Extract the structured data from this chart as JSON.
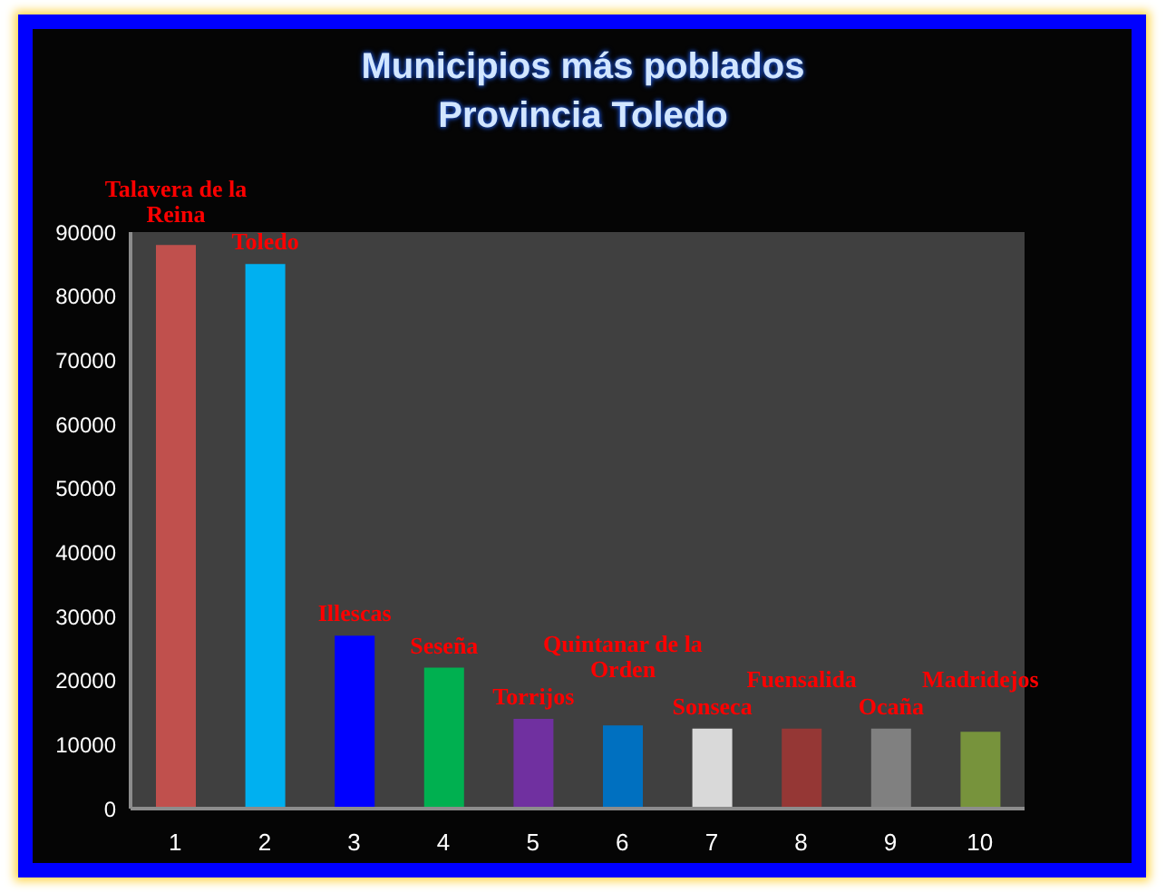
{
  "chart_data": {
    "type": "bar",
    "title": "Municipios más poblados",
    "subtitle": "Provincia Toledo",
    "categories": [
      "1",
      "2",
      "3",
      "4",
      "5",
      "6",
      "7",
      "8",
      "9",
      "10"
    ],
    "values": [
      88000,
      85000,
      27000,
      22000,
      14000,
      13000,
      12500,
      12500,
      12500,
      12000
    ],
    "colors": [
      "#c0504d",
      "#00b0f0",
      "#0000ff",
      "#00b050",
      "#7030a0",
      "#0070c0",
      "#d9d9d9",
      "#953735",
      "#808080",
      "#77933c"
    ],
    "value_labels": [
      "Talavera de la Reina",
      "Toledo",
      "Illescas",
      "Seseña",
      "Torrijos",
      "Quintanar de la Orden",
      "Sonseca",
      "Fuensalida",
      "Ocaña",
      "Madridejos"
    ],
    "ylim": [
      0,
      90000
    ],
    "yticks": [
      0,
      10000,
      20000,
      30000,
      40000,
      50000,
      60000,
      70000,
      80000,
      90000
    ]
  }
}
